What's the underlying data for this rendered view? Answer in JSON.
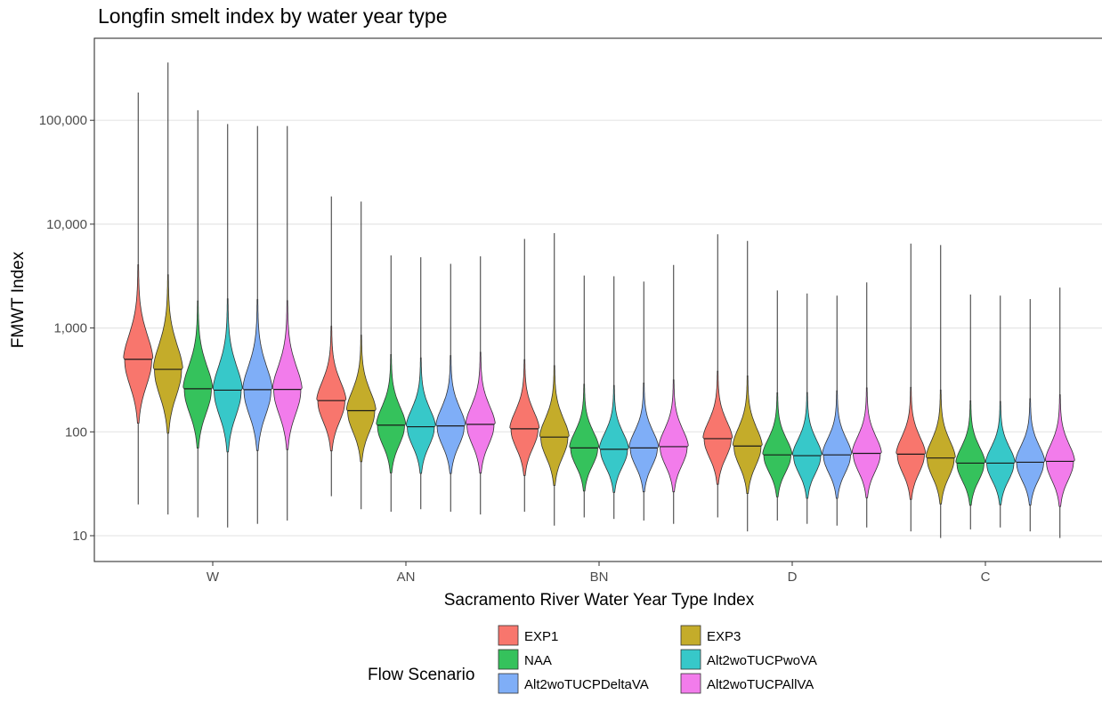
{
  "chart_data": {
    "type": "violin",
    "title": "Longfin smelt index by water year type",
    "xlabel": "Sacramento River Water Year Type Index",
    "ylabel": "FMWT Index",
    "y_scale": "log10",
    "ylim": [
      8.5,
      460000
    ],
    "y_ticks": [
      10,
      100,
      1000,
      10000,
      100000
    ],
    "y_tick_labels": [
      "10",
      "100",
      "1,000",
      "10,000",
      "100,000"
    ],
    "grid": "horizontal",
    "legend_title": "Flow Scenario",
    "legend_position": "bottom",
    "categories": [
      "W",
      "AN",
      "BN",
      "D",
      "C"
    ],
    "series": [
      {
        "name": "EXP1",
        "color": "#F8766D",
        "min": [
          20,
          24,
          17,
          15,
          11
        ],
        "median": [
          500,
          200,
          107,
          86,
          61
        ],
        "max": [
          185000,
          18500,
          7200,
          8000,
          6500
        ]
      },
      {
        "name": "EXP3",
        "color": "#C4AC2A",
        "min": [
          16,
          18,
          12.5,
          11,
          9.5
        ],
        "median": [
          400,
          160,
          89,
          73,
          56
        ],
        "max": [
          360000,
          16500,
          8200,
          6900,
          6300
        ]
      },
      {
        "name": "NAA",
        "color": "#35C25C",
        "min": [
          15,
          17,
          15,
          14,
          11.5
        ],
        "median": [
          260,
          116,
          70,
          60,
          50
        ],
        "max": [
          125000,
          5000,
          3200,
          2300,
          2100
        ]
      },
      {
        "name": "Alt2woTUCPwoVA",
        "color": "#37C8C9",
        "min": [
          12,
          18,
          14.5,
          13,
          12
        ],
        "median": [
          252,
          112,
          68,
          59,
          50
        ],
        "max": [
          92000,
          4800,
          3150,
          2150,
          2050
        ]
      },
      {
        "name": "Alt2woTUCPDeltaVA",
        "color": "#7FAEF7",
        "min": [
          13,
          17,
          14,
          12.5,
          11
        ],
        "median": [
          255,
          114,
          70,
          60,
          51
        ],
        "max": [
          88000,
          4150,
          2800,
          2050,
          1900
        ]
      },
      {
        "name": "Alt2woTUCPAllVA",
        "color": "#F27CEB",
        "min": [
          14,
          16,
          13,
          12,
          9.5
        ],
        "median": [
          256,
          118,
          72,
          62,
          52
        ],
        "max": [
          88000,
          4900,
          4050,
          2750,
          2450
        ]
      }
    ]
  }
}
